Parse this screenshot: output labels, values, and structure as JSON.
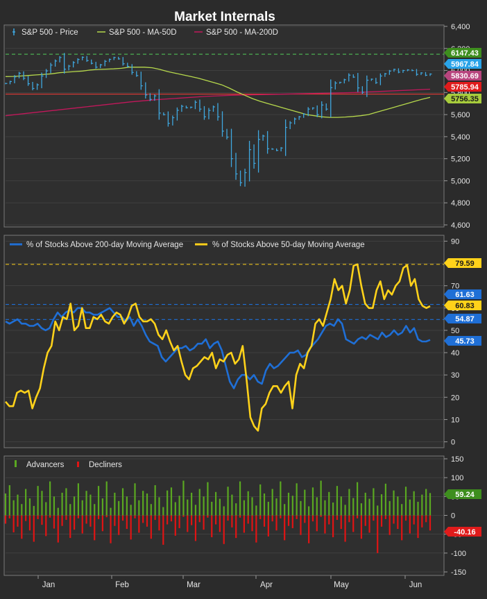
{
  "title": "Market Internals",
  "x_axis": {
    "ticks": [
      "Jan",
      "Feb",
      "Mar",
      "Apr",
      "May",
      "Jun"
    ]
  },
  "colors": {
    "background": "#2b2b2b",
    "plot_bg": "#2f2f2f",
    "grid": "#4a4a4a",
    "price": "#3fa8e0",
    "ma50": "#b7d94c",
    "ma200": "#c2185b",
    "pct200": "#1f6fd6",
    "pct50": "#ffd21a",
    "advancers": "#5aa821",
    "decliners": "#e01414",
    "hline_green": "#4caf50",
    "hline_red": "#e53935",
    "hline_yellow": "#ffd21a",
    "hline_blue": "#1f6fd6"
  },
  "chart_data": [
    {
      "type": "line",
      "panel": "price",
      "series": [
        {
          "name": "S&P 500 - Price",
          "last": 5967.84,
          "values": [
            5882,
            5900,
            5942,
            5975,
            5930,
            5880,
            5837,
            5870,
            5950,
            5996,
            6049,
            6086,
            6118,
            6012,
            6040,
            6072,
            6100,
            6120,
            6090,
            6065,
            6030,
            6051,
            6083,
            6101,
            6118,
            6105,
            6061,
            6037,
            5983,
            5954,
            5861,
            5778,
            5738,
            5770,
            5614,
            5599,
            5521,
            5572,
            5639,
            5675,
            5662,
            5667,
            5712,
            5650,
            5580,
            5638,
            5670,
            5580,
            5450,
            5396,
            5200,
            5062,
            4982,
            5074,
            5282,
            5158,
            5375,
            5406,
            5290,
            5287,
            5275,
            5297,
            5484,
            5525,
            5560,
            5580,
            5604,
            5650,
            5660,
            5600,
            5687,
            5650,
            5844,
            5886,
            5892,
            5916,
            5958,
            5940,
            5842,
            5802,
            5912,
            5921,
            5890,
            5950,
            5970,
            5995,
            6010,
            5985,
            6000,
            6005,
            6000,
            5965,
            5978,
            5957,
            5967.84
          ]
        },
        {
          "name": "S&P 500 - MA-50D",
          "last": 5756.35,
          "values": [
            5945,
            5946,
            5950,
            5955,
            5960,
            5965,
            5970,
            5980,
            5985,
            5990,
            5995,
            6005,
            6010,
            6012,
            6015,
            6020,
            6030,
            6030,
            6030,
            6025,
            6010,
            5990,
            5975,
            5960,
            5945,
            5930,
            5910,
            5890,
            5870,
            5840,
            5805,
            5775,
            5745,
            5720,
            5700,
            5680,
            5660,
            5640,
            5620,
            5600,
            5590,
            5580,
            5575,
            5575,
            5578,
            5583,
            5590,
            5600,
            5620,
            5640,
            5660,
            5680,
            5700,
            5720,
            5740,
            5756.35
          ]
        },
        {
          "name": "S&P 500 - MA-200D",
          "last": 5830.69,
          "values": [
            5590,
            5615,
            5640,
            5665,
            5690,
            5715,
            5735,
            5750,
            5765,
            5775,
            5780,
            5785,
            5790,
            5795,
            5800,
            5810,
            5820,
            5830.69
          ]
        }
      ],
      "reference_lines": [
        {
          "label": "6147.43",
          "value": 6147.43,
          "style": "dashed",
          "color": "#4caf50"
        },
        {
          "label": "5785.94",
          "value": 5785.94,
          "style": "solid",
          "color": "#e53935"
        }
      ],
      "last_value_labels": [
        "6147.43",
        "5967.84",
        "5830.69",
        "5785.94",
        "5756.35"
      ],
      "y_ticks": [
        "6,400",
        "6,200",
        "6,000",
        "5,800",
        "5,600",
        "5,400",
        "5,200",
        "5,000",
        "4,800",
        "4,600"
      ],
      "ylim": [
        4600,
        6400
      ]
    },
    {
      "type": "line",
      "panel": "breadth",
      "series": [
        {
          "name": "% of Stocks Above 200-day Moving Average",
          "last": 45.73,
          "values": [
            54,
            53,
            54,
            55,
            53,
            53,
            52,
            52,
            53,
            51,
            50,
            51,
            55,
            58,
            56,
            58,
            59,
            58,
            60,
            60,
            58,
            58,
            57,
            57,
            58,
            59,
            60,
            58,
            56,
            56,
            54,
            56,
            52,
            55,
            52,
            48,
            45,
            44,
            43,
            38,
            36,
            38,
            40,
            42,
            42,
            43,
            41,
            42,
            44,
            44,
            46,
            42,
            44,
            45,
            41,
            34,
            27,
            24,
            28,
            30,
            30,
            28,
            30,
            27,
            26,
            32,
            35,
            33,
            34,
            36,
            38,
            40,
            40,
            41,
            38,
            39,
            42,
            44,
            46,
            49,
            52,
            53,
            52,
            55,
            53,
            46,
            45,
            44,
            46,
            47,
            46,
            48,
            47,
            46,
            49,
            47,
            48,
            50,
            48,
            49,
            52,
            49,
            51,
            46,
            45,
            45,
            45.73
          ]
        },
        {
          "name": "% of Stocks Above 50-day Moving Average",
          "last": 60.83,
          "values": [
            18,
            16,
            16,
            22,
            23,
            22,
            23,
            15,
            20,
            24,
            33,
            40,
            43,
            54,
            50,
            56,
            55,
            62,
            50,
            52,
            60,
            51,
            51,
            56,
            55,
            57,
            54,
            53,
            56,
            58,
            57,
            53,
            56,
            61,
            62,
            56,
            54,
            54,
            55,
            53,
            48,
            46,
            50,
            45,
            41,
            43,
            36,
            30,
            28,
            33,
            34,
            36,
            38,
            37,
            40,
            33,
            37,
            36,
            39,
            40,
            35,
            37,
            43,
            28,
            11,
            7,
            5,
            15,
            17,
            22,
            25,
            25,
            22,
            25,
            27,
            15,
            30,
            35,
            33,
            40,
            43,
            53,
            55,
            52,
            58,
            64,
            73,
            68,
            70,
            62,
            68,
            79,
            79.6,
            70,
            62,
            60,
            60,
            68,
            72,
            64,
            68,
            66,
            70,
            72,
            78,
            79.2,
            70,
            73,
            64,
            61,
            60,
            60.83
          ]
        }
      ],
      "reference_lines": [
        {
          "label": "79.59",
          "value": 79.59,
          "style": "dashed",
          "color": "#ffd21a"
        },
        {
          "label": "61.63",
          "value": 61.63,
          "style": "dashed",
          "color": "#1f6fd6"
        },
        {
          "label": "54.87",
          "value": 54.87,
          "style": "dashed",
          "color": "#1f6fd6"
        }
      ],
      "last_value_labels": [
        "79.59",
        "61.63",
        "60.83",
        "54.87",
        "45.73"
      ],
      "y_ticks": [
        "90",
        "80",
        "70",
        "60",
        "50",
        "40",
        "30",
        "20",
        "10",
        "0"
      ],
      "ylim": [
        -2,
        92
      ]
    },
    {
      "type": "bar",
      "panel": "advance-decline",
      "series": [
        {
          "name": "Advancers",
          "last": 59.24,
          "values": [
            58,
            80,
            40,
            55,
            30,
            70,
            45,
            25,
            78,
            65,
            35,
            90,
            50,
            20,
            60,
            72,
            30,
            50,
            85,
            40,
            65,
            55,
            30,
            78,
            45,
            90,
            20,
            60,
            38,
            72,
            50,
            28,
            85,
            40,
            65,
            58,
            30,
            80,
            48,
            22,
            66,
            74,
            35,
            52,
            92,
            42,
            60,
            28,
            70,
            50,
            88,
            36,
            62,
            44,
            24,
            76,
            55,
            32,
            90,
            40,
            64,
            48,
            26,
            82,
            58,
            36,
            70,
            45,
            90,
            30,
            60,
            52,
            85,
            38,
            68,
            24,
            74,
            48,
            92,
            40,
            62,
            34,
            78,
            50,
            28,
            70,
            46,
            88,
            32,
            60,
            44,
            72,
            26,
            56,
            84,
            38,
            66,
            50,
            30,
            76,
            42,
            64,
            36,
            55,
            70,
            59.24
          ]
        },
        {
          "name": "Decliners",
          "last": -40.16,
          "values": [
            -22,
            -8,
            -45,
            -30,
            -62,
            -15,
            -40,
            -70,
            -10,
            -25,
            -55,
            -6,
            -35,
            -72,
            -28,
            -12,
            -60,
            -38,
            -8,
            -48,
            -22,
            -30,
            -66,
            -10,
            -42,
            -5,
            -74,
            -28,
            -52,
            -14,
            -36,
            -64,
            -8,
            -46,
            -20,
            -30,
            -62,
            -12,
            -40,
            -78,
            -24,
            -16,
            -54,
            -34,
            -4,
            -44,
            -26,
            -68,
            -18,
            -38,
            -6,
            -58,
            -24,
            -44,
            -76,
            -14,
            -32,
            -60,
            -6,
            -46,
            -22,
            -42,
            -72,
            -10,
            -30,
            -56,
            -16,
            -40,
            -8,
            -66,
            -28,
            -34,
            -10,
            -52,
            -20,
            -74,
            -16,
            -42,
            -4,
            -48,
            -24,
            -58,
            -12,
            -36,
            -70,
            -18,
            -44,
            -8,
            -62,
            -28,
            -46,
            -14,
            -100,
            -30,
            -10,
            -52,
            -22,
            -36,
            -66,
            -14,
            -48,
            -24,
            -60,
            -32,
            -18,
            -40.16
          ]
        }
      ],
      "last_value_labels": [
        "59.24",
        "-40.16"
      ],
      "y_ticks": [
        "150",
        "100",
        "50",
        "0",
        "-50",
        "-100",
        "-150"
      ],
      "ylim": [
        -150,
        150
      ]
    }
  ]
}
